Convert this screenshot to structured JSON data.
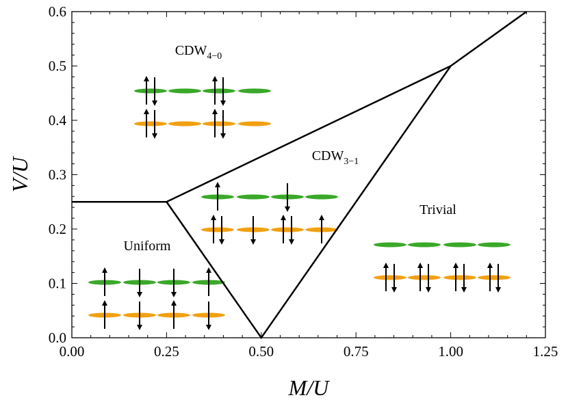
{
  "chart_data": {
    "type": "line",
    "xlabel": "M/U",
    "ylabel": "V/U",
    "xlim": [
      0,
      1.25
    ],
    "ylim": [
      0,
      0.6
    ],
    "xticks": [
      {
        "value": 0,
        "label": "0.00"
      },
      {
        "value": 0.25,
        "label": "0.25"
      },
      {
        "value": 0.5,
        "label": "0.50"
      },
      {
        "value": 0.75,
        "label": "0.75"
      },
      {
        "value": 1,
        "label": "1.00"
      },
      {
        "value": 1.25,
        "label": "1.25"
      }
    ],
    "yticks": [
      {
        "value": 0,
        "label": "0.0"
      },
      0.1,
      0.2,
      0.3,
      0.4,
      0.5,
      0.6
    ],
    "series": [
      {
        "color": "#000000",
        "x": [
          0,
          0.25,
          0.5,
          1.0,
          1.2
        ],
        "values": [
          0.25,
          0.25,
          0,
          0.5,
          0.6
        ]
      },
      {
        "color": "#000000",
        "x": [
          0.25,
          1.0
        ],
        "values": [
          0.25,
          0.5
        ]
      }
    ],
    "annotations": [
      {
        "text": "CDW",
        "subscript": "4−0"
      },
      {
        "text": "CDW",
        "subscript": "3−1"
      },
      {
        "text": "Uniform"
      },
      {
        "text": "Trivial"
      }
    ]
  }
}
